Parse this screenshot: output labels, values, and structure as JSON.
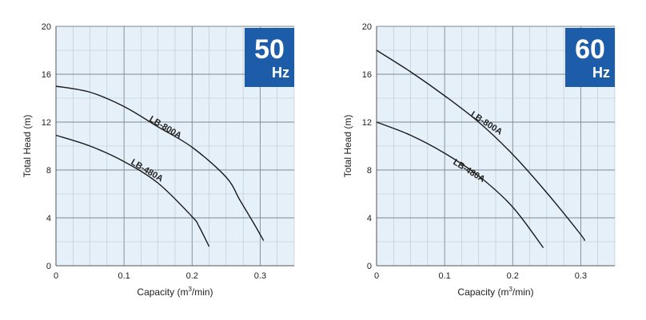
{
  "colors": {
    "plot_bg": "#e6f0f8",
    "grid_minor": "#b8c4cf",
    "grid_major": "#7d8792",
    "curve": "#1a1a1a",
    "badge": "#1d5ca8"
  },
  "chart_data": [
    {
      "type": "line",
      "badge": {
        "number": "50",
        "unit": "Hz"
      },
      "xlabel_prefix": "Capacity (m",
      "xlabel_sup": "3",
      "xlabel_suffix": "/min)",
      "ylabel": "Total Head (m)",
      "xlim": [
        0,
        0.35
      ],
      "ylim": [
        0,
        20
      ],
      "x_ticks": [
        0,
        0.1,
        0.2,
        0.3
      ],
      "x_tick_labels": [
        "0",
        "0.1",
        "0.2",
        "0.3"
      ],
      "y_ticks": [
        0,
        4,
        8,
        12,
        16,
        20
      ],
      "y_tick_labels": [
        "0",
        "4",
        "8",
        "12",
        "16",
        "20"
      ],
      "grid": true,
      "series": [
        {
          "name": "LB-800A",
          "x": [
            0,
            0.05,
            0.1,
            0.15,
            0.2,
            0.25,
            0.27,
            0.29,
            0.305
          ],
          "y": [
            15.0,
            14.5,
            13.3,
            11.6,
            9.9,
            7.4,
            5.5,
            3.6,
            2.1
          ]
        },
        {
          "name": "LB-480A",
          "x": [
            0,
            0.05,
            0.1,
            0.15,
            0.2,
            0.21,
            0.225
          ],
          "y": [
            10.9,
            10.0,
            8.7,
            6.9,
            4.1,
            3.3,
            1.6
          ]
        }
      ]
    },
    {
      "type": "line",
      "badge": {
        "number": "60",
        "unit": "Hz"
      },
      "xlabel_prefix": "Capacity (m",
      "xlabel_sup": "3",
      "xlabel_suffix": "/min)",
      "ylabel": "Total Head (m)",
      "xlim": [
        0,
        0.35
      ],
      "ylim": [
        0,
        20
      ],
      "x_ticks": [
        0,
        0.1,
        0.2,
        0.3
      ],
      "x_tick_labels": [
        "0",
        "0.1",
        "0.2",
        "0.3"
      ],
      "y_ticks": [
        0,
        4,
        8,
        12,
        16,
        20
      ],
      "y_tick_labels": [
        "0",
        "4",
        "8",
        "12",
        "16",
        "20"
      ],
      "grid": true,
      "series": [
        {
          "name": "LB-800A",
          "x": [
            0,
            0.05,
            0.1,
            0.15,
            0.2,
            0.25,
            0.3,
            0.305
          ],
          "y": [
            18.0,
            16.2,
            14.2,
            12.0,
            9.3,
            6.1,
            2.6,
            2.1
          ]
        },
        {
          "name": "LB-480A",
          "x": [
            0,
            0.05,
            0.1,
            0.15,
            0.2,
            0.245
          ],
          "y": [
            12.0,
            10.9,
            9.4,
            7.5,
            4.9,
            1.5
          ]
        }
      ]
    }
  ]
}
